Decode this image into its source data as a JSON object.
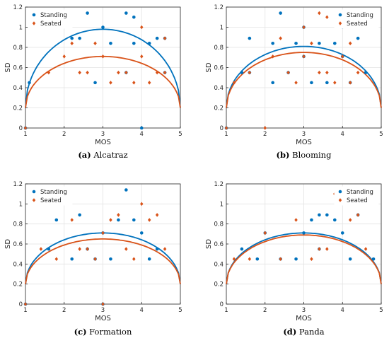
{
  "chart_data": [
    {
      "type": "scatter",
      "caption_letter": "(a)",
      "caption_name": "Alcatraz",
      "xlabel": "MOS",
      "ylabel": "SD",
      "xlim": [
        1,
        5
      ],
      "ylim": [
        0,
        1.2
      ],
      "xticks": [
        "1",
        "2",
        "3",
        "4",
        "5"
      ],
      "yticks": [
        "0",
        "0.2",
        "0.4",
        "0.6",
        "0.8",
        "1",
        "1.2"
      ],
      "legend_position": "top-left",
      "grid": true,
      "series": [
        {
          "name": "Standing",
          "color": "#0072BD",
          "marker": "dot",
          "points": [
            [
              1.0,
              0.0
            ],
            [
              1.1,
              0.45
            ],
            [
              2.2,
              0.89
            ],
            [
              2.4,
              0.89
            ],
            [
              2.6,
              1.14
            ],
            [
              2.8,
              0.45
            ],
            [
              3.0,
              1.0
            ],
            [
              3.2,
              0.84
            ],
            [
              3.6,
              1.14
            ],
            [
              3.6,
              0.55
            ],
            [
              3.8,
              1.1
            ],
            [
              3.8,
              0.84
            ],
            [
              4.0,
              0.0
            ],
            [
              4.2,
              0.84
            ],
            [
              4.4,
              0.89
            ],
            [
              4.6,
              0.89
            ],
            [
              4.6,
              0.55
            ]
          ],
          "fit_peak": 0.98
        },
        {
          "name": "Seated",
          "color": "#D95319",
          "marker": "diamond",
          "points": [
            [
              1.0,
              0.0
            ],
            [
              1.6,
              0.55
            ],
            [
              2.0,
              0.71
            ],
            [
              2.2,
              0.84
            ],
            [
              2.4,
              0.55
            ],
            [
              2.6,
              0.55
            ],
            [
              2.8,
              0.84
            ],
            [
              3.0,
              0.71
            ],
            [
              3.2,
              0.45
            ],
            [
              3.4,
              0.55
            ],
            [
              3.6,
              0.55
            ],
            [
              3.8,
              0.45
            ],
            [
              4.0,
              1.0
            ],
            [
              4.0,
              0.71
            ],
            [
              4.2,
              0.45
            ],
            [
              4.4,
              0.55
            ],
            [
              4.6,
              0.89
            ],
            [
              4.6,
              0.55
            ]
          ],
          "fit_peak": 0.71
        }
      ]
    },
    {
      "type": "scatter",
      "caption_letter": "(b)",
      "caption_name": "Blooming",
      "xlabel": "MOS",
      "ylabel": "SD",
      "xlim": [
        1,
        5
      ],
      "ylim": [
        0,
        1.2
      ],
      "xticks": [
        "1",
        "2",
        "3",
        "4",
        "5"
      ],
      "yticks": [
        "0",
        "0.2",
        "0.4",
        "0.6",
        "0.8",
        "1",
        "1.2"
      ],
      "legend_position": "top-right",
      "grid": true,
      "series": [
        {
          "name": "Standing",
          "color": "#0072BD",
          "marker": "dot",
          "points": [
            [
              1.0,
              0.0
            ],
            [
              1.4,
              0.55
            ],
            [
              1.6,
              0.55
            ],
            [
              1.6,
              0.89
            ],
            [
              2.2,
              0.45
            ],
            [
              2.2,
              0.84
            ],
            [
              2.4,
              1.14
            ],
            [
              2.6,
              0.55
            ],
            [
              2.8,
              0.84
            ],
            [
              3.0,
              1.0
            ],
            [
              3.0,
              0.71
            ],
            [
              3.2,
              0.45
            ],
            [
              3.4,
              0.84
            ],
            [
              3.6,
              0.45
            ],
            [
              3.8,
              0.84
            ],
            [
              4.0,
              1.0
            ],
            [
              4.0,
              0.71
            ],
            [
              4.2,
              0.45
            ],
            [
              4.4,
              0.89
            ],
            [
              4.6,
              0.55
            ]
          ],
          "fit_peak": 0.81
        },
        {
          "name": "Seated",
          "color": "#D95319",
          "marker": "diamond",
          "points": [
            [
              1.0,
              0.0
            ],
            [
              1.2,
              0.45
            ],
            [
              1.6,
              0.55
            ],
            [
              2.0,
              0.0
            ],
            [
              2.2,
              0.71
            ],
            [
              2.4,
              0.89
            ],
            [
              2.6,
              0.55
            ],
            [
              2.8,
              0.45
            ],
            [
              3.0,
              1.0
            ],
            [
              3.0,
              0.71
            ],
            [
              3.2,
              0.84
            ],
            [
              3.4,
              1.14
            ],
            [
              3.4,
              0.55
            ],
            [
              3.6,
              1.1
            ],
            [
              3.6,
              0.55
            ],
            [
              3.8,
              0.45
            ],
            [
              4.0,
              0.71
            ],
            [
              4.2,
              0.84
            ],
            [
              4.2,
              0.45
            ],
            [
              4.4,
              0.55
            ]
          ],
          "fit_peak": 0.75
        }
      ]
    },
    {
      "type": "scatter",
      "caption_letter": "(c)",
      "caption_name": "Formation",
      "xlabel": "MOS",
      "ylabel": "SD",
      "xlim": [
        1,
        5
      ],
      "ylim": [
        0,
        1.2
      ],
      "xticks": [
        "1",
        "2",
        "3",
        "4",
        "5"
      ],
      "yticks": [
        "0",
        "0.2",
        "0.4",
        "0.6",
        "0.8",
        "1",
        "1.2"
      ],
      "legend_position": "top-left",
      "grid": true,
      "series": [
        {
          "name": "Standing",
          "color": "#0072BD",
          "marker": "dot",
          "points": [
            [
              1.0,
              0.0
            ],
            [
              1.6,
              0.55
            ],
            [
              1.8,
              0.84
            ],
            [
              2.2,
              0.45
            ],
            [
              2.4,
              0.89
            ],
            [
              2.6,
              0.55
            ],
            [
              2.8,
              0.45
            ],
            [
              3.0,
              0.71
            ],
            [
              3.0,
              0.0
            ],
            [
              3.2,
              0.45
            ],
            [
              3.4,
              0.84
            ],
            [
              3.6,
              1.14
            ],
            [
              3.8,
              0.84
            ],
            [
              4.0,
              0.71
            ],
            [
              4.2,
              0.45
            ],
            [
              4.4,
              0.55
            ]
          ],
          "fit_peak": 0.71
        },
        {
          "name": "Seated",
          "color": "#D95319",
          "marker": "diamond",
          "points": [
            [
              1.0,
              0.0
            ],
            [
              1.4,
              0.55
            ],
            [
              1.8,
              0.45
            ],
            [
              2.2,
              0.84
            ],
            [
              2.4,
              0.55
            ],
            [
              2.6,
              0.55
            ],
            [
              2.8,
              0.45
            ],
            [
              3.0,
              0.71
            ],
            [
              3.0,
              0.0
            ],
            [
              3.2,
              0.84
            ],
            [
              3.4,
              0.89
            ],
            [
              3.6,
              0.55
            ],
            [
              3.8,
              0.45
            ],
            [
              4.0,
              1.0
            ],
            [
              4.2,
              0.84
            ],
            [
              4.4,
              0.89
            ],
            [
              4.6,
              0.55
            ]
          ],
          "fit_peak": 0.65
        }
      ]
    },
    {
      "type": "scatter",
      "caption_letter": "(d)",
      "caption_name": "Panda",
      "xlabel": "MOS",
      "ylabel": "SD",
      "xlim": [
        1,
        5
      ],
      "ylim": [
        0,
        1.2
      ],
      "xticks": [
        "1",
        "2",
        "3",
        "4",
        "5"
      ],
      "yticks": [
        "0",
        "0.2",
        "0.4",
        "0.6",
        "0.8",
        "1",
        "1.2"
      ],
      "legend_position": "top-right",
      "grid": true,
      "series": [
        {
          "name": "Standing",
          "color": "#0072BD",
          "marker": "dot",
          "points": [
            [
              1.4,
              0.55
            ],
            [
              1.8,
              0.45
            ],
            [
              2.0,
              0.71
            ],
            [
              2.4,
              0.45
            ],
            [
              2.8,
              0.45
            ],
            [
              3.0,
              0.71
            ],
            [
              3.2,
              0.84
            ],
            [
              3.4,
              0.89
            ],
            [
              3.4,
              0.55
            ],
            [
              3.6,
              0.89
            ],
            [
              3.8,
              0.84
            ],
            [
              4.0,
              0.71
            ],
            [
              4.2,
              0.45
            ],
            [
              4.4,
              0.89
            ],
            [
              4.8,
              0.45
            ]
          ],
          "fit_peak": 0.71
        },
        {
          "name": "Seated",
          "color": "#D95319",
          "marker": "diamond",
          "points": [
            [
              1.2,
              0.45
            ],
            [
              1.6,
              0.45
            ],
            [
              2.0,
              0.71
            ],
            [
              2.4,
              0.45
            ],
            [
              2.8,
              0.84
            ],
            [
              3.2,
              0.45
            ],
            [
              3.4,
              0.55
            ],
            [
              3.6,
              0.55
            ],
            [
              3.8,
              1.1
            ],
            [
              4.2,
              0.84
            ],
            [
              4.4,
              0.89
            ],
            [
              4.6,
              0.55
            ]
          ],
          "fit_peak": 0.69
        }
      ]
    }
  ]
}
